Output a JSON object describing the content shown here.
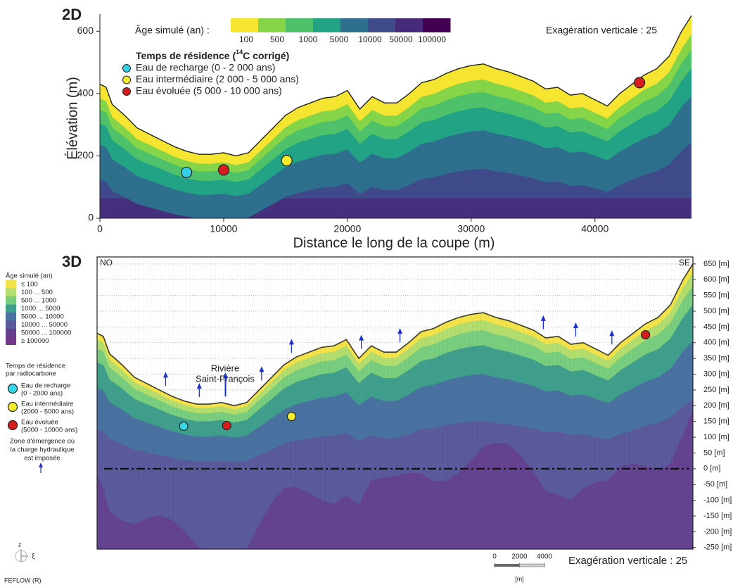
{
  "chart_data": [
    {
      "type": "area",
      "label": "2D",
      "age_legend_title": "Âge simulé (an) :",
      "age_labels": [
        "100",
        "500",
        "1000",
        "5000",
        "10000",
        "50000",
        "100000"
      ],
      "age_colors": [
        "#f6e530",
        "#86d549",
        "#4fc16a",
        "#22a386",
        "#2f6f8e",
        "#3f4a8a",
        "#472a7a",
        "#440154"
      ],
      "residence_title": [
        "Temps de résidence (",
        "14",
        "C corrigé)"
      ],
      "residence_items": [
        {
          "label": "Eau de recharge (0 - 2 000 ans)",
          "color": "#35d0e6"
        },
        {
          "label": "Eau intermédiaire (2 000 - 5 000 ans)",
          "color": "#f4ec2a"
        },
        {
          "label": "Eau évoluée (5 000 - 10 000 ans)",
          "color": "#d61e1e"
        }
      ],
      "note": "Exagération verticale : 25",
      "x_label": "Distance le long de la coupe (m)",
      "y_label": "Élévation (m)",
      "xlim": [
        0,
        47800
      ],
      "xticks": [
        0,
        10000,
        20000,
        30000,
        40000
      ],
      "ylim": [
        0,
        655
      ],
      "yticks": [
        0,
        200,
        400,
        600
      ],
      "surface": {
        "x": [
          0,
          500,
          1000,
          2000,
          3000,
          4000,
          5000,
          6000,
          7000,
          8000,
          9000,
          10000,
          11000,
          12000,
          13000,
          14000,
          15000,
          16000,
          17000,
          18000,
          19000,
          20000,
          21000,
          22000,
          23000,
          24000,
          25000,
          26000,
          27000,
          28000,
          29000,
          30000,
          31000,
          32000,
          33000,
          34000,
          35000,
          36000,
          37000,
          38000,
          39000,
          40000,
          41000,
          42000,
          43000,
          44000,
          45000,
          46000,
          47000,
          47800
        ],
        "values": [
          430,
          420,
          365,
          330,
          290,
          270,
          250,
          230,
          215,
          205,
          205,
          210,
          200,
          210,
          250,
          290,
          330,
          355,
          370,
          385,
          390,
          410,
          350,
          390,
          370,
          370,
          400,
          435,
          445,
          465,
          480,
          490,
          495,
          480,
          470,
          455,
          440,
          415,
          420,
          395,
          400,
          380,
          360,
          400,
          430,
          460,
          480,
          520,
          600,
          650
        ]
      },
      "samples": {
        "x": [
          7000,
          10000,
          15100,
          43600
        ],
        "values": [
          147,
          155,
          185,
          435
        ],
        "colors": [
          "#35d0e6",
          "#d61e1e",
          "#f4ec2a",
          "#d61e1e"
        ]
      }
    },
    {
      "type": "section",
      "label": "3D",
      "corner_labels": [
        "NO",
        "SE"
      ],
      "age_legend_title": "Âge simulé (an)",
      "age_labels": [
        "≤ 100",
        "100 ... 500",
        "500 ... 1000",
        "1000 ... 5000",
        "5000 ... 10000",
        "10000 ... 50000",
        "50000 ... 100000",
        "≥ 100000"
      ],
      "age_colors": [
        "#f3e24a",
        "#b3dd6e",
        "#79cd7e",
        "#3f9f8c",
        "#4a72a0",
        "#5a5a9c",
        "#663f90",
        "#71388a"
      ],
      "residence_title": [
        "Temps de résidence",
        "par radiocarbone"
      ],
      "residence_items": [
        {
          "label": [
            "Eau de recharge",
            "(0 - 2000 ans)"
          ],
          "color": "#35d8e8"
        },
        {
          "label": [
            "Eau intermédiaire",
            "(2000 - 5000 ans)"
          ],
          "color": "#f4ec2a"
        },
        {
          "label": [
            "Eau évoluée",
            "(5000 - 10000 ans)"
          ],
          "color": "#d61e1e"
        }
      ],
      "emergence_legend": [
        "Zone d'émergence où",
        "la charge hydraulique",
        "est imposée"
      ],
      "river_label": [
        "Rivière",
        "Saint-François"
      ],
      "note": "Exagération verticale : 25",
      "ylim": [
        -255,
        672
      ],
      "yticks": [
        {
          "value": 650,
          "label": "650 [m]"
        },
        {
          "value": 600,
          "label": "600 [m]"
        },
        {
          "value": 550,
          "label": "550 [m]"
        },
        {
          "value": 500,
          "label": "500 [m]"
        },
        {
          "value": 450,
          "label": "450 [m]"
        },
        {
          "value": 400,
          "label": "400 [m]"
        },
        {
          "value": 350,
          "label": "350 [m]"
        },
        {
          "value": 300,
          "label": "300 [m]"
        },
        {
          "value": 250,
          "label": "250 [m]"
        },
        {
          "value": 200,
          "label": "200 [m]"
        },
        {
          "value": 150,
          "label": "150 [m]"
        },
        {
          "value": 100,
          "label": "100 [m]"
        },
        {
          "value": 50,
          "label": "50 [m]"
        },
        {
          "value": 0,
          "label": "0 [m]"
        },
        {
          "value": -50,
          "label": "-50 [m]"
        },
        {
          "value": -100,
          "label": "-100 [m]"
        },
        {
          "value": -150,
          "label": "-150 [m]"
        },
        {
          "value": -200,
          "label": "-200 [m]"
        },
        {
          "value": -250,
          "label": "-250 [m]"
        }
      ],
      "reference_level": 0,
      "samples": {
        "x": [
          6950,
          10400,
          15600,
          44000
        ],
        "values": [
          135,
          137,
          166,
          425
        ],
        "colors": [
          "#35d8e8",
          "#d61e1e",
          "#f4ec2a",
          "#d61e1e"
        ]
      },
      "emergence_x": [
        5500,
        8200,
        10300,
        13200,
        15600,
        21200,
        24300,
        35800,
        38400,
        41300
      ],
      "scale_ticks": [
        0,
        2000,
        4000
      ],
      "scale_unit": "[m]",
      "axis_labels": [
        "z",
        "ξ"
      ],
      "software": "FEFLOW (R)"
    }
  ]
}
